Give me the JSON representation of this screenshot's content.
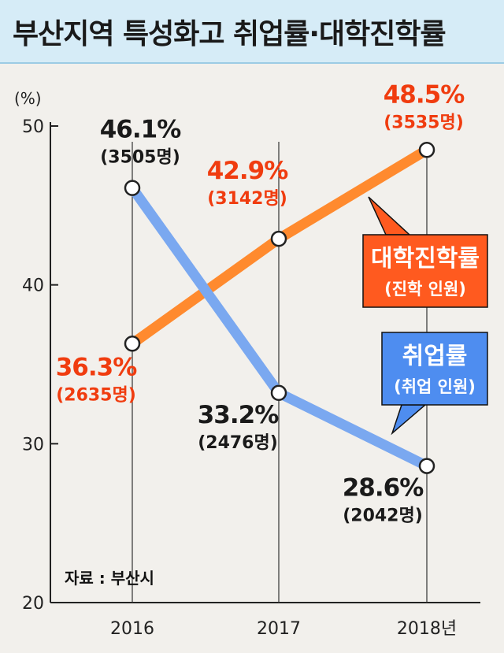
{
  "title": "부산지역 특성화고 취업률·대학진학률",
  "source": "자료 : 부산시",
  "colors": {
    "background": "#f2f0ec",
    "title_bg": "#d6ecf7",
    "college": "#ff8a2e",
    "college_label_bg": "#ff5a1f",
    "college_text": "#f03c0f",
    "employment": "#7aa8f0",
    "employment_label_bg": "#4e8df0",
    "text": "#1a1a1a"
  },
  "chart_data": {
    "type": "line",
    "categories": [
      "2016",
      "2017",
      "2018년"
    ],
    "ylabel": "(%)",
    "ylim": [
      20,
      50
    ],
    "yticks": [
      "20",
      "30",
      "40",
      "50"
    ],
    "grid": false,
    "series": [
      {
        "name": "대학진학률",
        "sub": "(진학 인원)",
        "values": [
          36.3,
          42.9,
          48.5
        ],
        "value_labels": [
          "36.3%",
          "42.9%",
          "48.5%"
        ],
        "count_labels": [
          "(2635명)",
          "(3142명)",
          "(3535명)"
        ]
      },
      {
        "name": "취업률",
        "sub": "(취업 인원)",
        "values": [
          46.1,
          33.2,
          28.6
        ],
        "value_labels": [
          "46.1%",
          "33.2%",
          "28.6%"
        ],
        "count_labels": [
          "(3505명)",
          "(2476명)",
          "(2042명)"
        ]
      }
    ]
  }
}
